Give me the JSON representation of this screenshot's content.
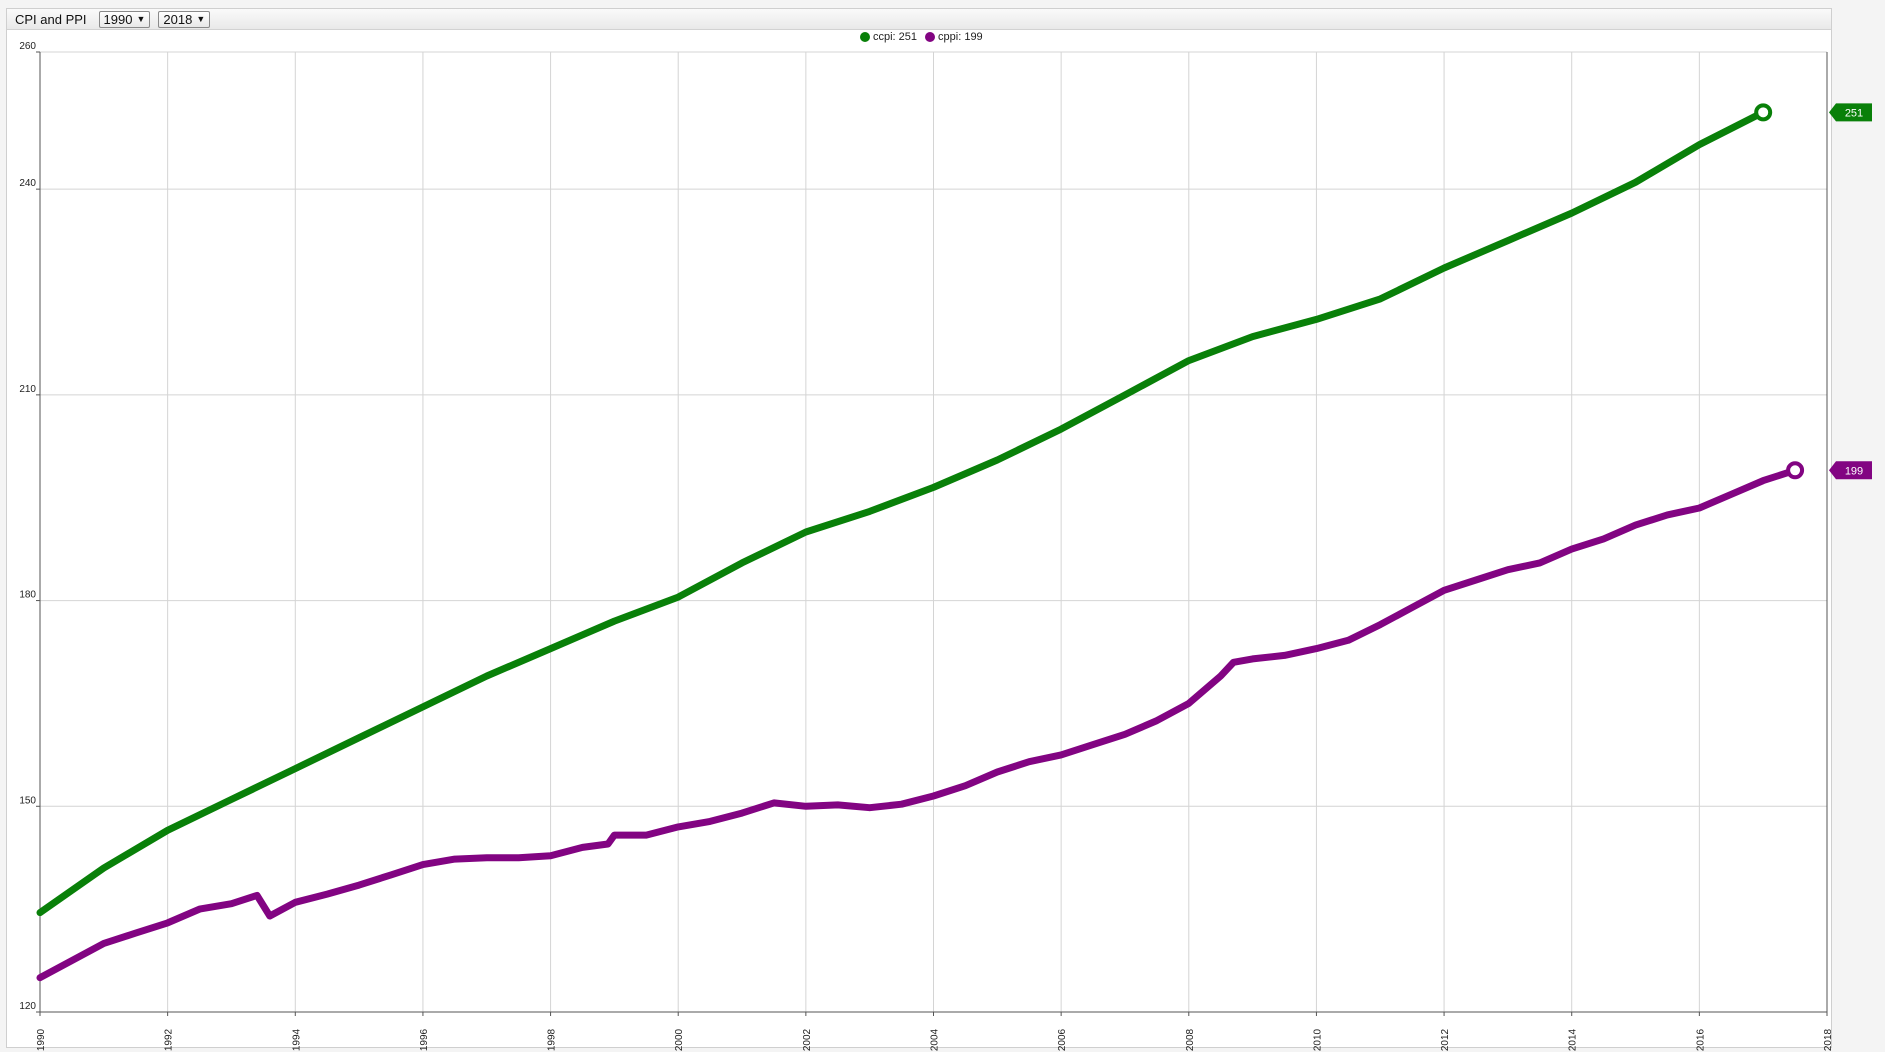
{
  "app": {
    "title": "CPI and PPI"
  },
  "controls": {
    "start_year": "1990",
    "end_year": "2018"
  },
  "legend": [
    {
      "label": "ccpi: 251",
      "color": "#098009"
    },
    {
      "label": "cppi: 199",
      "color": "#820482"
    }
  ],
  "chart_data": {
    "type": "line",
    "title": "CPI and PPI",
    "xlim": [
      1990,
      2018
    ],
    "ylim": [
      120,
      260
    ],
    "y_ticks": [
      120,
      150,
      180,
      210,
      240,
      260
    ],
    "x_ticks": [
      1990,
      1992,
      1994,
      1996,
      1998,
      2000,
      2002,
      2004,
      2006,
      2008,
      2010,
      2012,
      2014,
      2016,
      2018
    ],
    "grid": true,
    "legend_position": "top-center",
    "series": [
      {
        "name": "ccpi",
        "color": "#098009",
        "last_value_label": "251",
        "points": [
          [
            1990.0,
            134.5
          ],
          [
            1991.0,
            141.0
          ],
          [
            1992.0,
            146.5
          ],
          [
            1993.0,
            151.0
          ],
          [
            1994.0,
            155.5
          ],
          [
            1995.0,
            160.0
          ],
          [
            1996.0,
            164.5
          ],
          [
            1997.0,
            169.0
          ],
          [
            1998.0,
            173.0
          ],
          [
            1999.0,
            177.0
          ],
          [
            2000.0,
            180.5
          ],
          [
            2001.0,
            185.5
          ],
          [
            2002.0,
            190.0
          ],
          [
            2003.0,
            193.0
          ],
          [
            2004.0,
            196.5
          ],
          [
            2005.0,
            200.5
          ],
          [
            2006.0,
            205.0
          ],
          [
            2007.0,
            210.0
          ],
          [
            2008.0,
            215.0
          ],
          [
            2009.0,
            218.5
          ],
          [
            2010.0,
            221.0
          ],
          [
            2011.0,
            224.0
          ],
          [
            2012.0,
            228.5
          ],
          [
            2013.0,
            232.5
          ],
          [
            2014.0,
            236.5
          ],
          [
            2015.0,
            241.0
          ],
          [
            2016.0,
            246.5
          ],
          [
            2017.0,
            251.2
          ]
        ]
      },
      {
        "name": "cppi",
        "color": "#820482",
        "last_value_label": "199",
        "points": [
          [
            1990.0,
            125.0
          ],
          [
            1990.5,
            127.5
          ],
          [
            1991.0,
            130.0
          ],
          [
            1991.5,
            131.5
          ],
          [
            1992.0,
            133.0
          ],
          [
            1992.5,
            135.0
          ],
          [
            1993.0,
            135.8
          ],
          [
            1993.4,
            137.0
          ],
          [
            1993.6,
            134.0
          ],
          [
            1994.0,
            136.0
          ],
          [
            1994.5,
            137.2
          ],
          [
            1995.0,
            138.5
          ],
          [
            1995.5,
            140.0
          ],
          [
            1996.0,
            141.5
          ],
          [
            1996.5,
            142.3
          ],
          [
            1997.0,
            142.5
          ],
          [
            1997.5,
            142.5
          ],
          [
            1998.0,
            142.8
          ],
          [
            1998.5,
            144.0
          ],
          [
            1998.9,
            144.5
          ],
          [
            1999.0,
            145.8
          ],
          [
            1999.5,
            145.8
          ],
          [
            2000.0,
            147.0
          ],
          [
            2000.5,
            147.8
          ],
          [
            2001.0,
            149.0
          ],
          [
            2001.5,
            150.5
          ],
          [
            2002.0,
            150.0
          ],
          [
            2002.5,
            150.2
          ],
          [
            2003.0,
            149.8
          ],
          [
            2003.5,
            150.3
          ],
          [
            2004.0,
            151.5
          ],
          [
            2004.5,
            153.0
          ],
          [
            2005.0,
            155.0
          ],
          [
            2005.5,
            156.5
          ],
          [
            2006.0,
            157.5
          ],
          [
            2006.5,
            159.0
          ],
          [
            2007.0,
            160.5
          ],
          [
            2007.5,
            162.5
          ],
          [
            2008.0,
            165.0
          ],
          [
            2008.5,
            169.0
          ],
          [
            2008.7,
            171.0
          ],
          [
            2009.0,
            171.5
          ],
          [
            2009.5,
            172.0
          ],
          [
            2010.0,
            173.0
          ],
          [
            2010.5,
            174.2
          ],
          [
            2011.0,
            176.5
          ],
          [
            2011.5,
            179.0
          ],
          [
            2012.0,
            181.5
          ],
          [
            2012.5,
            183.0
          ],
          [
            2013.0,
            184.5
          ],
          [
            2013.5,
            185.5
          ],
          [
            2014.0,
            187.5
          ],
          [
            2014.5,
            189.0
          ],
          [
            2015.0,
            191.0
          ],
          [
            2015.5,
            192.5
          ],
          [
            2016.0,
            193.5
          ],
          [
            2016.5,
            195.5
          ],
          [
            2017.0,
            197.5
          ],
          [
            2017.5,
            199.0
          ]
        ]
      }
    ]
  }
}
